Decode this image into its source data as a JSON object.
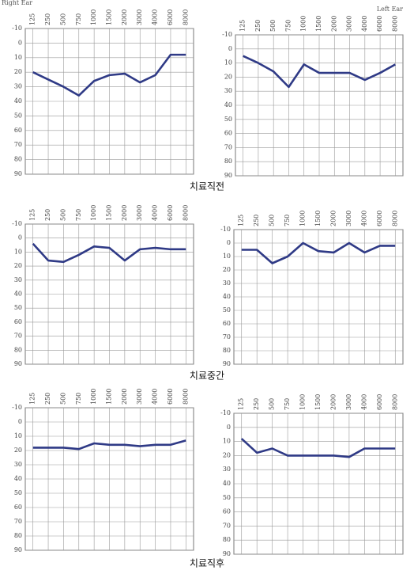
{
  "chart_data": [
    {
      "type": "line",
      "title": "Right Ear",
      "categories": [
        "125",
        "250",
        "500",
        "750",
        "1000",
        "1500",
        "2000",
        "3000",
        "4000",
        "6000",
        "8000"
      ],
      "series": [
        {
          "color": "#2f3a86",
          "values": [
            20,
            25,
            30,
            36,
            26,
            22,
            21,
            27,
            22,
            8,
            8
          ]
        }
      ],
      "ylim": [
        -10,
        90
      ],
      "yticks": [
        -10,
        0,
        10,
        20,
        30,
        40,
        50,
        60,
        70,
        80,
        90
      ],
      "grid": true,
      "invert_y": true
    },
    {
      "type": "line",
      "title": "Left Ear",
      "categories": [
        "125",
        "250",
        "500",
        "750",
        "1000",
        "1500",
        "2000",
        "3000",
        "4000",
        "6000",
        "8000"
      ],
      "series": [
        {
          "color": "#2f3a86",
          "values": [
            5,
            10,
            16,
            27,
            11,
            17,
            17,
            17,
            22,
            17,
            11
          ]
        }
      ],
      "ylim": [
        -10,
        90
      ],
      "yticks": [
        -10,
        0,
        10,
        20,
        30,
        40,
        50,
        60,
        70,
        80,
        90
      ],
      "grid": true,
      "invert_y": true
    },
    {
      "type": "line",
      "categories": [
        "125",
        "250",
        "500",
        "750",
        "1000",
        "1500",
        "2000",
        "3000",
        "4000",
        "6000",
        "8000"
      ],
      "series": [
        {
          "color": "#2f3a86",
          "values": [
            4,
            16,
            17,
            12,
            6,
            7,
            16,
            8,
            7,
            8,
            8
          ]
        }
      ],
      "ylim": [
        -10,
        90
      ],
      "yticks": [
        -10,
        0,
        10,
        20,
        30,
        40,
        50,
        60,
        70,
        80,
        90
      ],
      "grid": true,
      "invert_y": true
    },
    {
      "type": "line",
      "categories": [
        "125",
        "250",
        "500",
        "750",
        "1000",
        "1500",
        "2000",
        "3000",
        "4000",
        "6000",
        "8000"
      ],
      "series": [
        {
          "color": "#2f3a86",
          "values": [
            5,
            5,
            15,
            10,
            0,
            6,
            7,
            0,
            7,
            2,
            2
          ]
        }
      ],
      "ylim": [
        -10,
        90
      ],
      "yticks": [
        -10,
        0,
        10,
        20,
        30,
        40,
        50,
        60,
        70,
        80,
        90
      ],
      "grid": true,
      "invert_y": true
    },
    {
      "type": "line",
      "categories": [
        "125",
        "250",
        "500",
        "750",
        "1000",
        "1500",
        "2000",
        "3000",
        "4000",
        "6000",
        "8000"
      ],
      "series": [
        {
          "color": "#2f3a86",
          "values": [
            18,
            18,
            18,
            19,
            15,
            16,
            16,
            17,
            16,
            16,
            13
          ]
        }
      ],
      "ylim": [
        -10,
        90
      ],
      "yticks": [
        -10,
        0,
        10,
        20,
        30,
        40,
        50,
        60,
        70,
        80,
        90
      ],
      "grid": true,
      "invert_y": true
    },
    {
      "type": "line",
      "categories": [
        "125",
        "250",
        "500",
        "750",
        "1000",
        "1500",
        "2000",
        "3000",
        "4000",
        "6000",
        "8000"
      ],
      "series": [
        {
          "color": "#2f3a86",
          "values": [
            8,
            18,
            15,
            20,
            20,
            20,
            20,
            21,
            15,
            15,
            15
          ]
        }
      ],
      "ylim": [
        -10,
        90
      ],
      "yticks": [
        -10,
        0,
        10,
        20,
        30,
        40,
        50,
        60,
        70,
        80,
        90
      ],
      "grid": true,
      "invert_y": true
    }
  ],
  "captions": [
    "치료직전",
    "치료중간",
    "치료직후"
  ]
}
